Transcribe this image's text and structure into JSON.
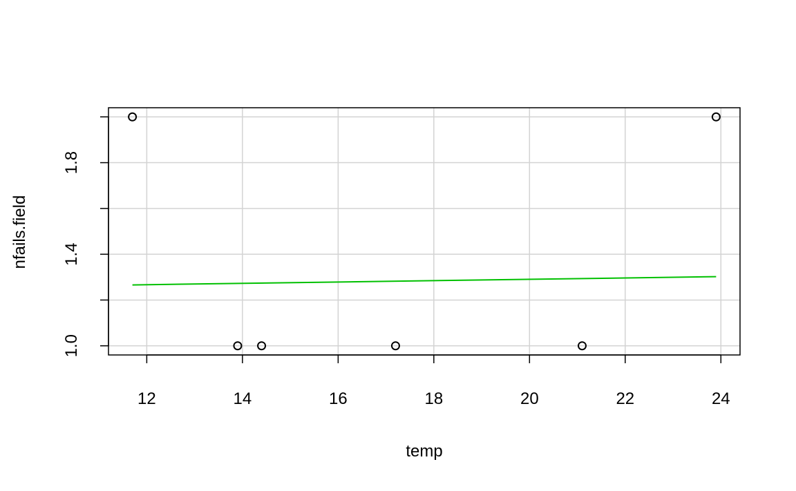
{
  "chart_data": {
    "type": "scatter",
    "title": "",
    "xlabel": "temp",
    "ylabel": "nfails.field",
    "xlim": [
      11.2,
      24.4
    ],
    "ylim": [
      0.96,
      2.04
    ],
    "x_ticks": [
      12,
      14,
      16,
      18,
      20,
      22,
      24
    ],
    "y_ticks": [
      1.0,
      1.2,
      1.4,
      1.6,
      1.8,
      2.0
    ],
    "y_tick_labels": [
      "1.0",
      "",
      "1.4",
      "",
      "1.8",
      ""
    ],
    "grid": true,
    "points": [
      {
        "x": 11.7,
        "y": 2.0
      },
      {
        "x": 13.9,
        "y": 1.0
      },
      {
        "x": 14.4,
        "y": 1.0
      },
      {
        "x": 17.2,
        "y": 1.0
      },
      {
        "x": 21.1,
        "y": 1.0
      },
      {
        "x": 23.9,
        "y": 2.0
      }
    ],
    "fit_line": {
      "x": [
        11.7,
        23.9
      ],
      "y": [
        1.266,
        1.302
      ],
      "color": "#00c000"
    },
    "colors": {
      "points": "#000000",
      "grid": "#d3d3d3",
      "fit": "#00c000"
    }
  }
}
